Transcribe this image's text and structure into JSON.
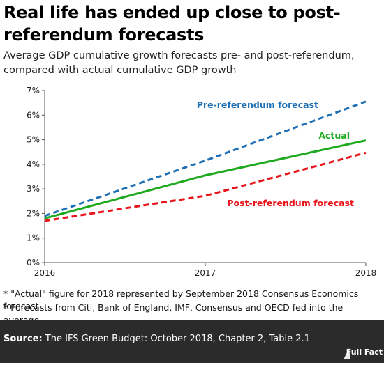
{
  "header": {
    "title": "Real life has ended up close to post-referendum forecasts",
    "subtitle": "Average GDP cumulative growth forecasts pre- and post-referendum, compared with actual cumulative GDP growth"
  },
  "chart_data": {
    "type": "line",
    "x": [
      2016,
      2017,
      2018
    ],
    "xlim": [
      2016,
      2018
    ],
    "ylim": [
      0,
      7
    ],
    "y_ticks": [
      0,
      1,
      2,
      3,
      4,
      5,
      6,
      7
    ],
    "y_tick_labels": [
      "0%",
      "1%",
      "2%",
      "3%",
      "4%",
      "5%",
      "6%",
      "7%"
    ],
    "x_tick_labels": [
      "2016",
      "2017",
      "2018"
    ],
    "grid": false,
    "series": [
      {
        "name": "Pre-referendum forecast",
        "values": [
          1.9,
          4.15,
          6.55
        ],
        "color": "#1f6fb5",
        "style": "dashed",
        "label_placement": "top-right"
      },
      {
        "name": "Actual",
        "values": [
          1.8,
          3.55,
          4.97
        ],
        "color": "#1eaa1e",
        "style": "solid",
        "label_placement": "right"
      },
      {
        "name": "Post-referendum forecast",
        "values": [
          1.7,
          2.72,
          4.47
        ],
        "color": "#e8131a",
        "style": "dashed",
        "label_placement": "bottom-right"
      }
    ]
  },
  "footnotes": [
    "* \"Actual\" figure for 2018 represented by September 2018 Consensus Economics forecast",
    "* Forecasts from Citi, Bank of England, IMF, Consensus and OECD fed into the average"
  ],
  "source": {
    "label": "Source:",
    "text": " The IFS Green Budget: October 2018, Chapter 2, Table 2.1"
  },
  "brand": {
    "logo_text": "Full Fact"
  }
}
